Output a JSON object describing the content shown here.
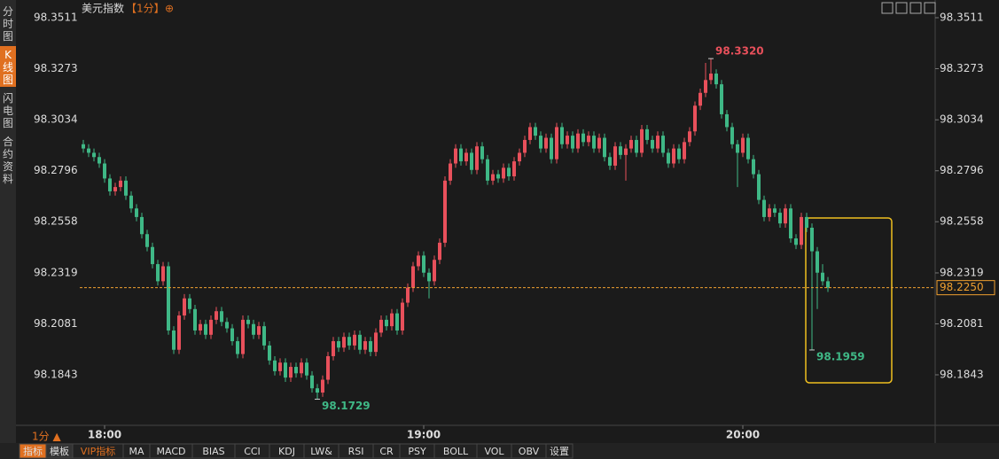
{
  "chart_data": {
    "type": "candlestick",
    "title": "美元指数",
    "subtitle": "【1分】",
    "up_color": "#e8505b",
    "down_color": "#3fb886",
    "categories": [
      null,
      null,
      null,
      null,
      "18:00",
      null,
      null,
      null,
      null,
      null,
      null,
      null,
      null,
      null,
      null,
      null,
      null,
      null,
      null,
      null,
      null,
      null,
      null,
      null,
      null,
      null,
      null,
      null,
      null,
      null,
      null,
      null,
      null,
      null,
      null,
      null,
      null,
      null,
      null,
      null,
      null,
      null,
      null,
      null,
      null,
      null,
      null,
      null,
      null,
      null,
      null,
      null,
      null,
      null,
      null,
      null,
      null,
      null,
      null,
      null,
      null,
      null,
      null,
      null,
      "19:00",
      null,
      null,
      null,
      null,
      null,
      null,
      null,
      null,
      null,
      null,
      null,
      null,
      null,
      null,
      null,
      null,
      null,
      null,
      null,
      null,
      null,
      null,
      null,
      null,
      null,
      null,
      null,
      null,
      null,
      null,
      null,
      null,
      null,
      null,
      null,
      null,
      null,
      null,
      null,
      null,
      null,
      null,
      null,
      null,
      null,
      null,
      null,
      null,
      null,
      null,
      null,
      null,
      null,
      null,
      null,
      null,
      null,
      null,
      null,
      "20:00",
      null,
      null,
      null,
      null,
      null,
      null,
      null,
      null,
      null,
      null,
      null,
      null,
      null,
      null,
      null,
      null
    ],
    "open": [
      98.292,
      98.29,
      98.288,
      98.286,
      98.283,
      98.276,
      98.27,
      98.272,
      98.275,
      98.268,
      98.262,
      98.258,
      98.25,
      98.244,
      98.236,
      98.228,
      98.235,
      98.205,
      98.196,
      98.212,
      98.22,
      98.215,
      98.205,
      98.208,
      98.203,
      98.21,
      98.214,
      98.209,
      98.206,
      98.2,
      98.194,
      98.21,
      98.208,
      98.203,
      98.207,
      98.198,
      98.191,
      98.186,
      98.19,
      98.183,
      98.188,
      98.185,
      98.19,
      98.184,
      98.178,
      98.176,
      98.182,
      98.193,
      98.2,
      98.197,
      98.202,
      98.198,
      98.203,
      98.196,
      98.2,
      98.195,
      98.204,
      98.21,
      98.207,
      98.213,
      98.205,
      98.218,
      98.225,
      98.235,
      98.24,
      98.232,
      98.228,
      98.238,
      98.246,
      98.275,
      98.283,
      98.29,
      98.284,
      98.288,
      98.28,
      98.291,
      98.285,
      98.275,
      98.278,
      98.276,
      98.281,
      98.277,
      98.284,
      98.288,
      98.294,
      98.3,
      98.296,
      98.29,
      98.295,
      98.285,
      98.3,
      98.292,
      98.296,
      98.29,
      98.297,
      98.293,
      98.296,
      98.29,
      98.295,
      98.286,
      98.282,
      98.291,
      98.287,
      98.29,
      98.294,
      98.288,
      98.299,
      98.294,
      98.29,
      98.296,
      98.288,
      98.283,
      98.29,
      98.285,
      98.293,
      98.298,
      98.31,
      98.316,
      98.322,
      98.325,
      98.32,
      98.306,
      98.3,
      98.292,
      98.288,
      98.295,
      98.285,
      98.278,
      98.266,
      98.258,
      98.262,
      98.26,
      98.255,
      98.262,
      98.248,
      98.245,
      98.258,
      98.253,
      98.242,
      98.232,
      98.228
    ],
    "high": [
      98.294,
      98.292,
      98.29,
      98.288,
      98.285,
      98.278,
      98.274,
      98.277,
      98.277,
      98.27,
      98.264,
      98.26,
      98.252,
      98.246,
      98.238,
      98.237,
      98.237,
      98.207,
      98.214,
      98.222,
      98.222,
      98.217,
      98.21,
      98.21,
      98.212,
      98.216,
      98.216,
      98.211,
      98.208,
      98.202,
      98.212,
      98.212,
      98.21,
      98.209,
      98.209,
      98.2,
      98.193,
      98.192,
      98.192,
      98.19,
      98.19,
      98.192,
      98.192,
      98.186,
      98.18,
      98.184,
      98.195,
      98.202,
      98.202,
      98.204,
      98.204,
      98.205,
      98.205,
      98.202,
      98.202,
      98.206,
      98.212,
      98.212,
      98.215,
      98.215,
      98.22,
      98.227,
      98.237,
      98.242,
      98.242,
      98.234,
      98.24,
      98.248,
      98.277,
      98.285,
      98.292,
      98.292,
      98.29,
      98.29,
      98.293,
      98.293,
      98.287,
      98.28,
      98.28,
      98.283,
      98.283,
      98.286,
      98.29,
      98.296,
      98.302,
      98.302,
      98.298,
      98.297,
      98.297,
      98.302,
      98.302,
      98.298,
      98.298,
      98.299,
      98.299,
      98.298,
      98.298,
      98.297,
      98.297,
      98.288,
      98.293,
      98.293,
      98.292,
      98.296,
      98.296,
      98.301,
      98.301,
      98.296,
      98.298,
      98.298,
      98.29,
      98.292,
      98.292,
      98.295,
      98.3,
      98.312,
      98.318,
      98.33,
      98.332,
      98.327,
      98.322,
      98.308,
      98.302,
      98.294,
      98.297,
      98.297,
      98.287,
      98.28,
      98.268,
      98.264,
      98.264,
      98.262,
      98.264,
      98.264,
      98.25,
      98.26,
      98.26,
      98.255,
      98.244,
      98.236,
      98.23
    ],
    "low": [
      98.288,
      98.286,
      98.284,
      98.281,
      98.274,
      98.268,
      98.268,
      98.27,
      98.266,
      98.26,
      98.256,
      98.248,
      98.242,
      98.234,
      98.226,
      98.226,
      98.203,
      98.194,
      98.194,
      98.21,
      98.213,
      98.203,
      98.203,
      98.201,
      98.201,
      98.208,
      98.207,
      98.204,
      98.198,
      98.192,
      98.192,
      98.206,
      98.201,
      98.201,
      98.196,
      98.189,
      98.184,
      98.184,
      98.181,
      98.181,
      98.183,
      98.183,
      98.182,
      98.176,
      98.1729,
      98.174,
      98.18,
      98.191,
      98.195,
      98.195,
      98.196,
      98.196,
      98.194,
      98.194,
      98.193,
      98.193,
      98.202,
      98.205,
      98.205,
      98.203,
      98.203,
      98.216,
      98.223,
      98.233,
      98.23,
      98.22,
      98.226,
      98.236,
      98.244,
      98.273,
      98.281,
      98.282,
      98.282,
      98.278,
      98.278,
      98.283,
      98.273,
      98.273,
      98.274,
      98.274,
      98.275,
      98.275,
      98.282,
      98.286,
      98.292,
      98.294,
      98.288,
      98.288,
      98.283,
      98.283,
      98.29,
      98.29,
      98.288,
      98.288,
      98.291,
      98.291,
      98.288,
      98.288,
      98.284,
      98.28,
      98.28,
      98.285,
      98.275,
      98.288,
      98.286,
      98.286,
      98.292,
      98.288,
      98.288,
      98.286,
      98.281,
      98.281,
      98.283,
      98.283,
      98.291,
      98.296,
      98.308,
      98.314,
      98.32,
      98.318,
      98.304,
      98.298,
      98.29,
      98.272,
      98.286,
      98.283,
      98.276,
      98.264,
      98.256,
      98.256,
      98.258,
      98.253,
      98.253,
      98.246,
      98.243,
      98.243,
      98.251,
      98.1959,
      98.215,
      98.226,
      98.223
    ],
    "close": [
      98.29,
      98.288,
      98.286,
      98.283,
      98.276,
      98.27,
      98.272,
      98.275,
      98.268,
      98.262,
      98.258,
      98.25,
      98.244,
      98.236,
      98.228,
      98.235,
      98.205,
      98.196,
      98.212,
      98.22,
      98.215,
      98.205,
      98.208,
      98.203,
      98.21,
      98.214,
      98.209,
      98.206,
      98.2,
      98.194,
      98.21,
      98.208,
      98.203,
      98.207,
      98.198,
      98.191,
      98.186,
      98.19,
      98.183,
      98.188,
      98.185,
      98.19,
      98.184,
      98.178,
      98.176,
      98.182,
      98.193,
      98.2,
      98.197,
      98.202,
      98.198,
      98.203,
      98.196,
      98.2,
      98.195,
      98.204,
      98.21,
      98.207,
      98.213,
      98.205,
      98.218,
      98.225,
      98.235,
      98.24,
      98.232,
      98.228,
      98.238,
      98.246,
      98.275,
      98.283,
      98.29,
      98.284,
      98.288,
      98.28,
      98.291,
      98.285,
      98.275,
      98.278,
      98.276,
      98.281,
      98.277,
      98.284,
      98.288,
      98.294,
      98.3,
      98.296,
      98.29,
      98.295,
      98.285,
      98.3,
      98.292,
      98.296,
      98.29,
      98.297,
      98.293,
      98.296,
      98.29,
      98.295,
      98.286,
      98.282,
      98.291,
      98.287,
      98.29,
      98.294,
      98.288,
      98.299,
      98.294,
      98.29,
      98.296,
      98.288,
      98.283,
      98.29,
      98.285,
      98.293,
      98.298,
      98.31,
      98.316,
      98.322,
      98.325,
      98.32,
      98.306,
      98.3,
      98.292,
      98.288,
      98.295,
      98.285,
      98.278,
      98.266,
      98.258,
      98.262,
      98.26,
      98.255,
      98.262,
      98.248,
      98.245,
      98.258,
      98.253,
      98.242,
      98.232,
      98.228,
      98.225
    ],
    "ylim": [
      98.1607,
      98.3573
    ],
    "yticks": [
      98.3511,
      98.3273,
      98.3034,
      98.2796,
      98.2558,
      98.2319,
      98.2081,
      98.1843
    ],
    "last_price": {
      "value": 98.225,
      "label": "98.2250",
      "color": "#f0a030"
    },
    "annotations": [
      {
        "value": 98.332,
        "label": "98.3320",
        "color": "#e8505b"
      },
      {
        "value": 98.1729,
        "label": "98.1729",
        "color": "#3fb886"
      },
      {
        "value": 98.1959,
        "label": "98.1959",
        "color": "#3fb886"
      }
    ]
  },
  "ui": {
    "sidebar_tabs": [
      "分时图",
      "K线图",
      "闪电图",
      "合约资料"
    ],
    "period": "1分 ▲",
    "toolbar": [
      "指标",
      "模板",
      "VIP指标",
      "MA",
      "MACD",
      "BIAS",
      "CCI",
      "KDJ",
      "LW&",
      "RSI",
      "CR",
      "PSY",
      "BOLL",
      "VOL",
      "OBV",
      "设置"
    ]
  }
}
